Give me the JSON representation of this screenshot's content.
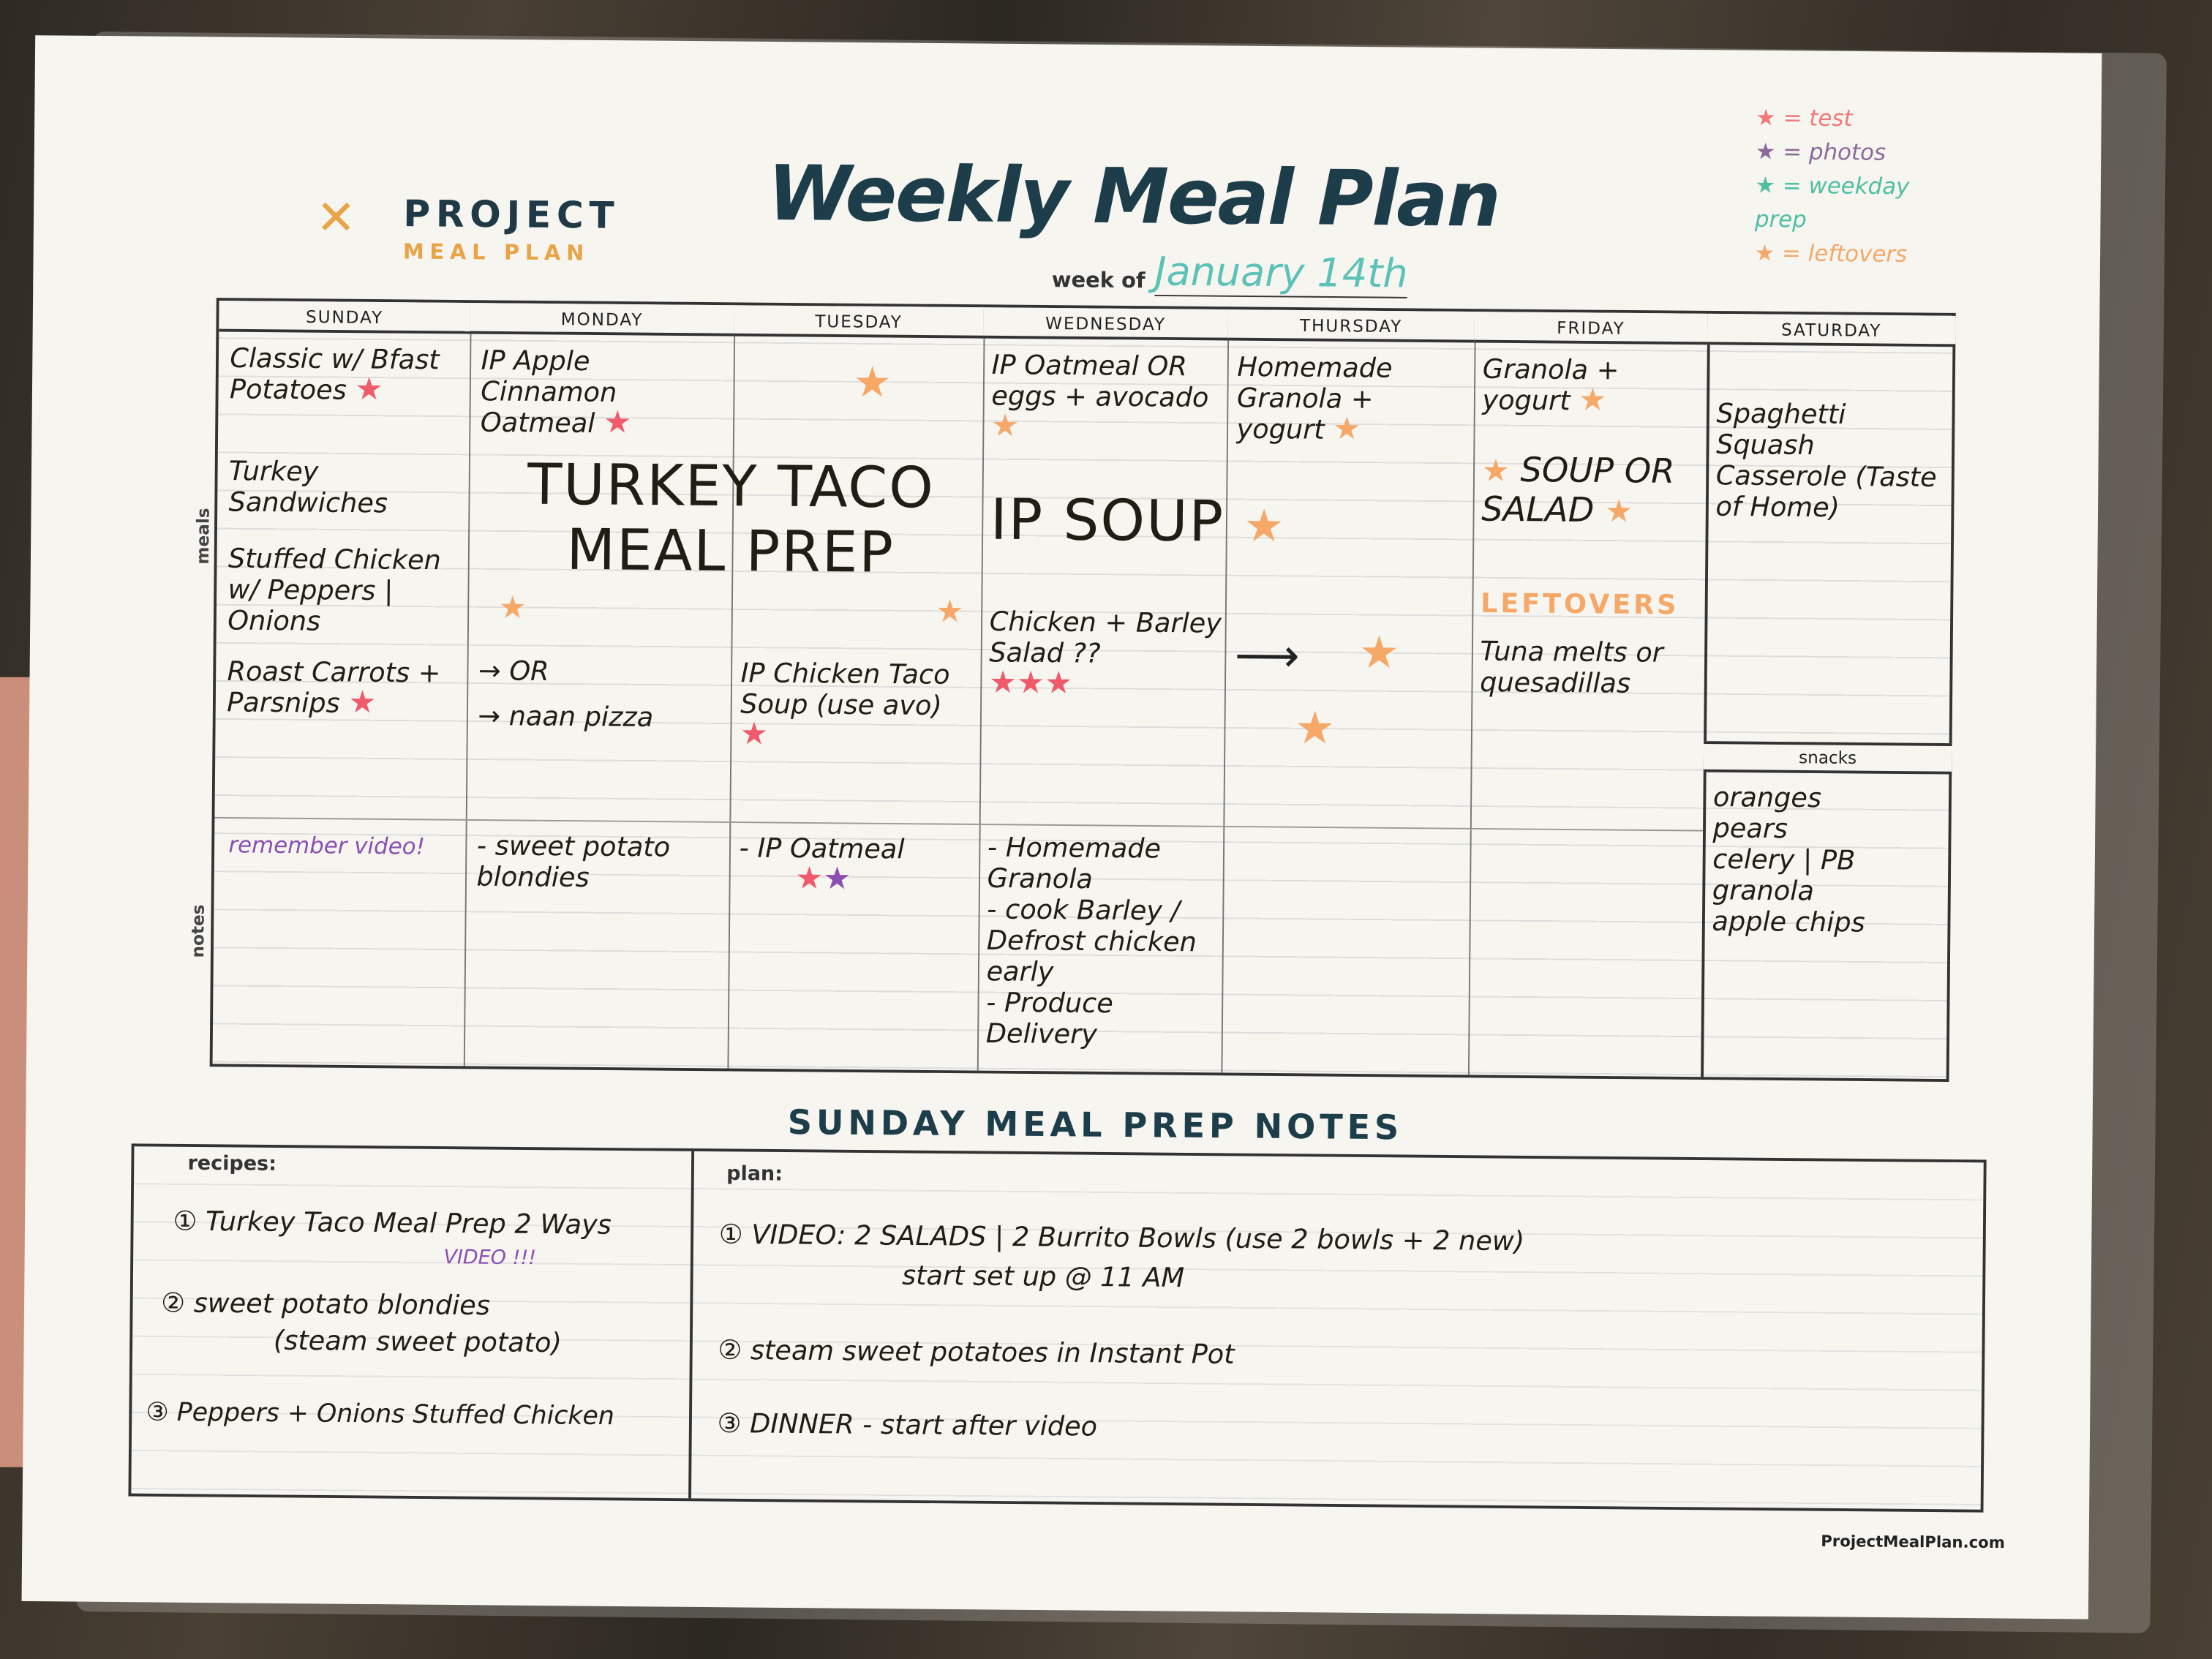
{
  "header": {
    "brand_line1": "PROJECT",
    "brand_line2": "MEAL PLAN",
    "title": "Weekly Meal Plan",
    "week_of_label": "week of",
    "week_of_value": "January 14th"
  },
  "legend": [
    {
      "icon": "star-icon",
      "text": "= test",
      "color": "#f07a7a"
    },
    {
      "icon": "star-icon",
      "text": "= photos",
      "color": "#8a6a9a"
    },
    {
      "icon": "star-icon",
      "text": "= weekday prep",
      "color": "#4fbfa3"
    },
    {
      "icon": "star-icon",
      "text": "= leftovers",
      "color": "#f5a868"
    }
  ],
  "days": [
    "SUNDAY",
    "MONDAY",
    "TUESDAY",
    "WEDNESDAY",
    "THURSDAY",
    "FRIDAY",
    "SATURDAY"
  ],
  "row_labels": {
    "meals": "meals",
    "notes": "notes",
    "snacks": "snacks"
  },
  "meals": {
    "sunday": [
      "Classic w/ Bfast Potatoes",
      "Turkey Sandwiches",
      "Stuffed Chicken w/ Peppers | Onions",
      "Roast Carrots + Parsnips"
    ],
    "monday": [
      "IP Apple Cinnamon Oatmeal",
      "OR",
      "naan pizza"
    ],
    "monday_tuesday_span": "TURKEY TACO MEAL PREP",
    "tuesday": [
      "IP Chicken Taco Soup (use avo)"
    ],
    "wednesday": [
      "IP Oatmeal OR eggs + avocado",
      "Chicken + Barley Salad ??"
    ],
    "wednesday_thursday_span": "IP SOUP",
    "thursday": [
      "Homemade Granola + yogurt"
    ],
    "friday": [
      "Granola + yogurt",
      "SOUP OR SALAD",
      "LEFTOVERS",
      "Tuna melts or quesadillas"
    ],
    "saturday": [
      "Spaghetti Squash Casserole (Taste of Home)"
    ]
  },
  "notes": {
    "sunday": "remember video!",
    "monday": "- sweet potato blondies",
    "tuesday": "- IP Oatmeal",
    "wednesday": [
      "- Homemade Granola",
      "- cook Barley / Defrost chicken early",
      "- Produce Delivery"
    ]
  },
  "snacks": [
    "oranges",
    "pears",
    "celery | PB",
    "granola",
    "apple chips"
  ],
  "prep_notes": {
    "title": "SUNDAY MEAL PREP NOTES",
    "recipes_label": "recipes:",
    "recipes": [
      "① Turkey Taco Meal Prep 2 Ways",
      "VIDEO !!!",
      "② sweet potato blondies",
      "(steam sweet potato)",
      "③ Peppers + Onions Stuffed Chicken"
    ],
    "plan_label": "plan:",
    "plan": [
      "① VIDEO: 2 SALADS | 2 Burrito Bowls (use 2 bowls + 2 new)",
      "start set up @ 11 AM",
      "② steam sweet potatoes in Instant Pot",
      "③ DINNER - start after video"
    ]
  },
  "footer": "ProjectMealPlan.com"
}
